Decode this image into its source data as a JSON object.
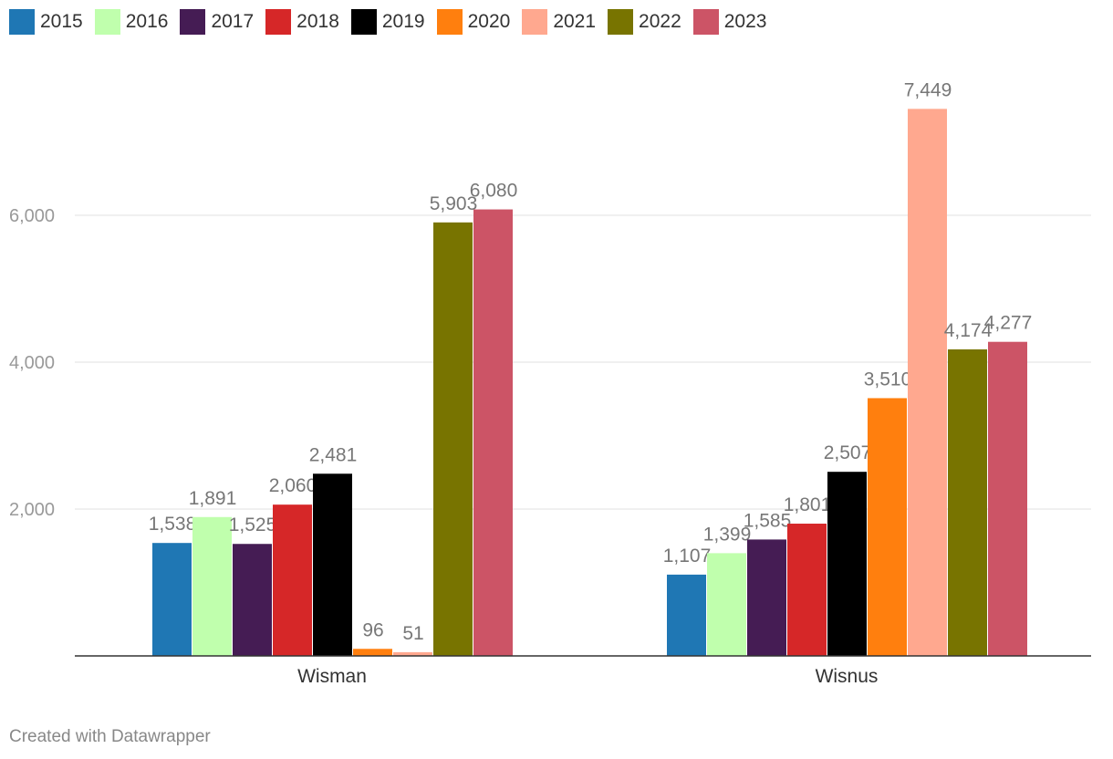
{
  "chart_data": {
    "type": "bar",
    "title": "",
    "xlabel": "",
    "ylabel": "",
    "ylim": [
      0,
      7600
    ],
    "yticks": [
      2000,
      4000,
      6000
    ],
    "ytick_labels": [
      "2,000",
      "4,000",
      "6,000"
    ],
    "grid": true,
    "legend_position": "top-left",
    "categories": [
      "Wisman",
      "Wisnus"
    ],
    "series": [
      {
        "name": "2015",
        "color": "#1f77b4",
        "values": [
          1538,
          1107
        ],
        "labels": [
          "1,538",
          "1,107"
        ]
      },
      {
        "name": "2016",
        "color": "#c0ffad",
        "values": [
          1891,
          1399
        ],
        "labels": [
          "1,891",
          "1,399"
        ]
      },
      {
        "name": "2017",
        "color": "#451c54",
        "values": [
          1525,
          1585
        ],
        "labels": [
          "1,525",
          "1,585"
        ]
      },
      {
        "name": "2018",
        "color": "#d62728",
        "values": [
          2060,
          1801
        ],
        "labels": [
          "2,060",
          "1,801"
        ]
      },
      {
        "name": "2019",
        "color": "#000000",
        "values": [
          2481,
          2507
        ],
        "labels": [
          "2,481",
          "2,507"
        ]
      },
      {
        "name": "2020",
        "color": "#ff7f0e",
        "values": [
          96,
          3510
        ],
        "labels": [
          "96",
          "3,510"
        ]
      },
      {
        "name": "2021",
        "color": "#ffa88f",
        "values": [
          51,
          7449
        ],
        "labels": [
          "51",
          "7,449"
        ]
      },
      {
        "name": "2022",
        "color": "#787400",
        "values": [
          5903,
          4174
        ],
        "labels": [
          "5,903",
          "4,174"
        ]
      },
      {
        "name": "2023",
        "color": "#cc5466",
        "values": [
          6080,
          4277
        ],
        "labels": [
          "6,080",
          "4,277"
        ]
      }
    ]
  },
  "footer": "Created with Datawrapper"
}
